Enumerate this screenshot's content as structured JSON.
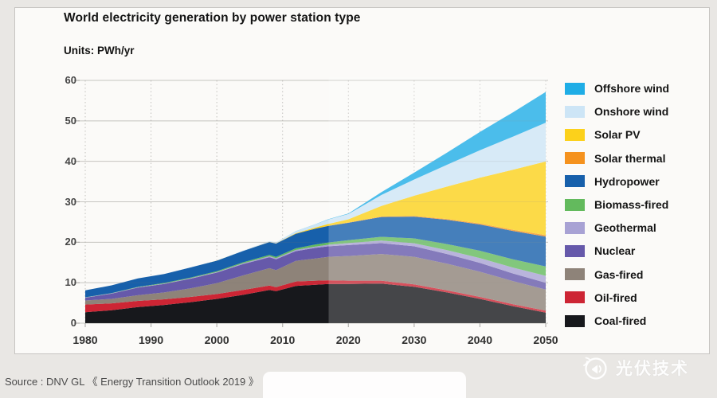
{
  "chart_data": {
    "type": "area",
    "stacked": true,
    "title": "World electricity generation by power station type",
    "units_label": "Units: PWh/yr",
    "xlabel": "",
    "ylabel": "",
    "ylim": [
      0,
      60
    ],
    "y_ticks": [
      0,
      10,
      20,
      30,
      40,
      50,
      60
    ],
    "x_ticks": [
      1980,
      1990,
      2000,
      2010,
      2020,
      2030,
      2040,
      2050
    ],
    "grid": "horizontal-solid, vertical-dotted",
    "legend_position": "right",
    "forecast_start_year": 2017,
    "forecast_overlay_color": "rgba(255,255,255,0.20)",
    "years": [
      1980,
      1984,
      1988,
      1992,
      1996,
      2000,
      2004,
      2008,
      2009,
      2012,
      2015,
      2017,
      2020,
      2025,
      2030,
      2035,
      2040,
      2045,
      2050
    ],
    "series": [
      {
        "name": "Coal-fired",
        "color": "#17181c",
        "values": [
          2.7,
          3.2,
          4.0,
          4.5,
          5.2,
          6.0,
          7.0,
          8.2,
          7.9,
          9.2,
          9.5,
          9.7,
          9.7,
          9.8,
          9.0,
          7.6,
          6.0,
          4.2,
          2.6
        ]
      },
      {
        "name": "Oil-fired",
        "color": "#cd2534",
        "values": [
          1.9,
          1.7,
          1.5,
          1.4,
          1.3,
          1.2,
          1.2,
          1.1,
          1.0,
          1.1,
          1.0,
          0.9,
          0.8,
          0.7,
          0.6,
          0.5,
          0.5,
          0.5,
          0.5
        ]
      },
      {
        "name": "Gas-fired",
        "color": "#8e8379",
        "values": [
          1.0,
          1.1,
          1.4,
          1.7,
          2.1,
          2.7,
          3.6,
          4.3,
          4.2,
          5.1,
          5.5,
          5.8,
          6.1,
          6.6,
          6.8,
          6.6,
          6.2,
          5.7,
          5.2
        ]
      },
      {
        "name": "Nuclear",
        "color": "#6659aa",
        "values": [
          0.7,
          1.3,
          1.9,
          2.1,
          2.4,
          2.6,
          2.8,
          2.7,
          2.7,
          2.4,
          2.6,
          2.6,
          2.7,
          2.7,
          2.6,
          2.4,
          2.2,
          1.9,
          1.7
        ]
      },
      {
        "name": "Geothermal",
        "color": "#a8a2d4",
        "values": [
          0.05,
          0.07,
          0.08,
          0.1,
          0.12,
          0.15,
          0.2,
          0.25,
          0.25,
          0.3,
          0.35,
          0.4,
          0.5,
          0.6,
          0.75,
          0.95,
          1.2,
          1.45,
          1.7
        ]
      },
      {
        "name": "Biomass-fired",
        "color": "#63ba5d",
        "values": [
          0.05,
          0.07,
          0.1,
          0.13,
          0.16,
          0.2,
          0.25,
          0.3,
          0.32,
          0.4,
          0.5,
          0.55,
          0.7,
          0.95,
          1.2,
          1.5,
          1.8,
          2.05,
          2.3
        ]
      },
      {
        "name": "Hydropower",
        "color": "#1760ab",
        "values": [
          1.7,
          1.9,
          2.1,
          2.2,
          2.5,
          2.6,
          2.8,
          3.2,
          3.3,
          3.6,
          3.9,
          4.1,
          4.3,
          4.9,
          5.4,
          6.0,
          6.5,
          7.0,
          7.4
        ]
      },
      {
        "name": "Solar thermal",
        "color": "#f5921e",
        "values": [
          0,
          0,
          0,
          0,
          0,
          0,
          0.01,
          0.01,
          0.02,
          0.02,
          0.04,
          0.05,
          0.08,
          0.12,
          0.15,
          0.2,
          0.25,
          0.3,
          0.35
        ]
      },
      {
        "name": "Solar PV",
        "color": "#fcd11b",
        "values": [
          0,
          0,
          0,
          0,
          0,
          0.01,
          0.01,
          0.02,
          0.02,
          0.1,
          0.25,
          0.45,
          0.8,
          2.6,
          5.0,
          8.0,
          11.3,
          14.8,
          18.2
        ]
      },
      {
        "name": "Onshore wind",
        "color": "#cde5f6",
        "values": [
          0,
          0,
          0,
          0.01,
          0.01,
          0.03,
          0.08,
          0.2,
          0.25,
          0.5,
          0.8,
          1.1,
          1.3,
          2.7,
          4.0,
          5.4,
          6.8,
          8.2,
          9.6
        ]
      },
      {
        "name": "Offshore wind",
        "color": "#1fade6",
        "values": [
          0,
          0,
          0,
          0,
          0,
          0,
          0,
          0.01,
          0.01,
          0.02,
          0.04,
          0.06,
          0.1,
          0.7,
          1.7,
          3.0,
          4.5,
          6.0,
          7.6
        ]
      }
    ],
    "legend_order_top_to_bottom": [
      "Offshore wind",
      "Onshore wind",
      "Solar PV",
      "Solar thermal",
      "Hydropower",
      "Biomass-fired",
      "Geothermal",
      "Nuclear",
      "Gas-fired",
      "Oil-fired",
      "Coal-fired"
    ]
  },
  "source": {
    "text": "Source : DNV GL 《 Energy Transition Outlook 2019 》"
  },
  "watermark": {
    "text": "光伏技术",
    "icon": "megaphone-icon"
  },
  "colors": {
    "page_background": "#e9e7e4",
    "panel_background": "#fbfaf8",
    "panel_border": "#c7c5c2",
    "gridline": "#d6d4d1",
    "axis_text": "#3c3c3c"
  }
}
